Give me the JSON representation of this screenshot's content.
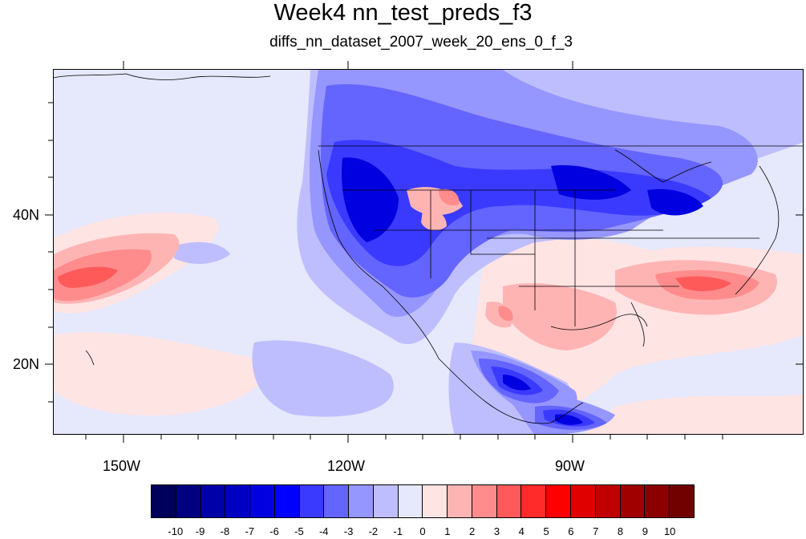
{
  "title": "Week4 nn_test_preds_f3",
  "subtitle": "diffs_nn_dataset_2007_week_20_ens_0_f_3",
  "map": {
    "projection": "cylindrical-equidistant",
    "lon_range": [
      -159,
      -60
    ],
    "lat_range": [
      10,
      59
    ],
    "lat_labels": [
      "40N",
      "20N"
    ],
    "lon_labels": [
      "150W",
      "120W",
      "90W"
    ]
  },
  "colorbar": {
    "levels": [
      "-10",
      "-9",
      "-8",
      "-7",
      "-6",
      "-5",
      "-4",
      "-3",
      "-2",
      "-1",
      "0",
      "1",
      "2",
      "3",
      "4",
      "5",
      "6",
      "7",
      "8",
      "9",
      "10"
    ],
    "colors": [
      "#00005a",
      "#000080",
      "#0000a8",
      "#0000c4",
      "#0000e0",
      "#0000ff",
      "#3a3aff",
      "#6464ff",
      "#9696ff",
      "#bebeff",
      "#e6e8fb",
      "#ffe4e4",
      "#ffb4b4",
      "#ff8c8c",
      "#ff5a5a",
      "#ff2a2a",
      "#ff0000",
      "#e00000",
      "#c00000",
      "#a00000",
      "#8a0000",
      "#700000"
    ]
  }
}
